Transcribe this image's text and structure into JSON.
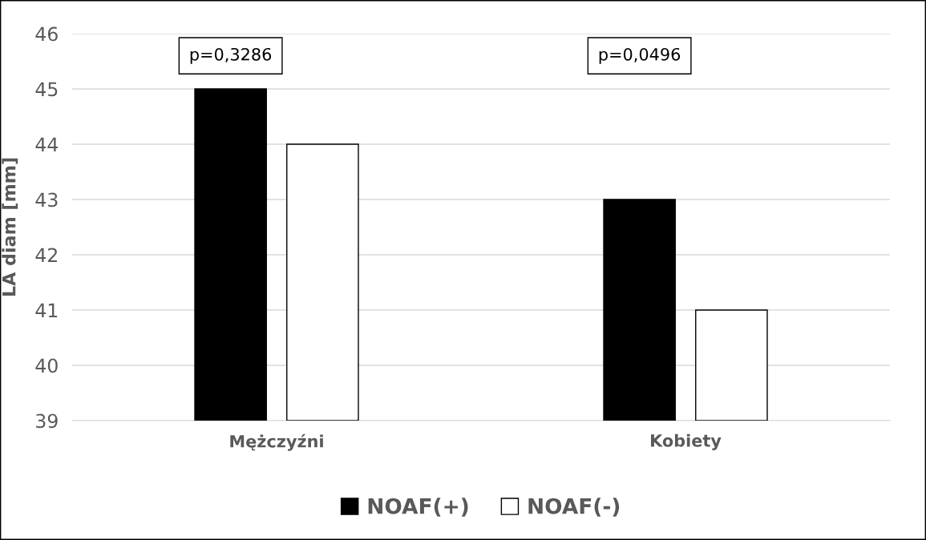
{
  "chart_data": {
    "type": "bar",
    "ylabel": "LA diam [mm]",
    "categories": [
      "Mężczyźni",
      "Kobiety"
    ],
    "series": [
      {
        "name": "NOAF(+)",
        "color": "#000000",
        "values": [
          45,
          43
        ]
      },
      {
        "name": "NOAF(-)",
        "color": "#ffffff",
        "values": [
          44,
          41
        ]
      }
    ],
    "ylim": [
      39,
      46
    ],
    "yticks": [
      39,
      40,
      41,
      42,
      43,
      44,
      45,
      46
    ],
    "grid": "y",
    "legend": "bottom",
    "annotations": [
      "p=0,3286",
      "p=0,0496"
    ]
  }
}
